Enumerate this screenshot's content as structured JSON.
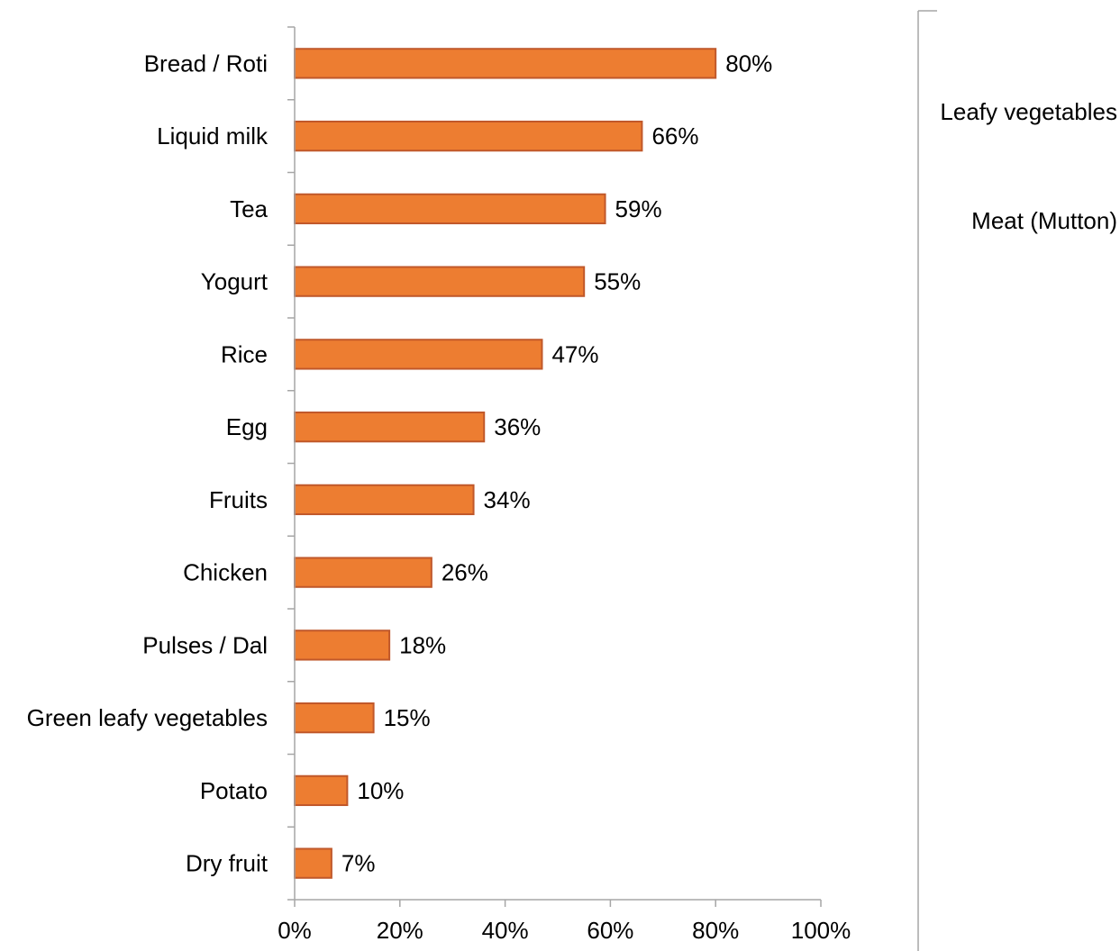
{
  "chart_data": {
    "type": "bar",
    "orientation": "horizontal",
    "categories": [
      "Bread / Roti",
      "Liquid milk",
      "Tea",
      "Yogurt",
      "Rice",
      "Egg",
      "Fruits",
      "Chicken",
      "Pulses / Dal",
      "Green leafy vegetables",
      "Potato",
      "Dry fruit"
    ],
    "values": [
      80,
      66,
      59,
      55,
      47,
      36,
      34,
      26,
      18,
      15,
      10,
      7
    ],
    "value_labels": [
      "80%",
      "66%",
      "59%",
      "55%",
      "47%",
      "36%",
      "34%",
      "26%",
      "18%",
      "15%",
      "10%",
      "7%"
    ],
    "x_ticks": [
      "0%",
      "20%",
      "40%",
      "60%",
      "80%",
      "100%"
    ],
    "xlim": [
      0,
      100
    ],
    "grid": false,
    "bar_color": "#ED7D31",
    "bar_border_color": "#C0582A",
    "axis_color": "#A6A6A6"
  },
  "side_panel": {
    "labels": [
      "Leafy vegetables",
      "Meat (Mutton)"
    ]
  }
}
